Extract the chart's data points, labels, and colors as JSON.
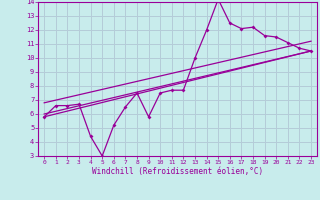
{
  "xlabel": "Windchill (Refroidissement éolien,°C)",
  "bg_color": "#c8ecec",
  "grid_color": "#b4ccd8",
  "line_color": "#990099",
  "xlim": [
    -0.5,
    23.5
  ],
  "ylim": [
    3,
    14
  ],
  "xticks": [
    0,
    1,
    2,
    3,
    4,
    5,
    6,
    7,
    8,
    9,
    10,
    11,
    12,
    13,
    14,
    15,
    16,
    17,
    18,
    19,
    20,
    21,
    22,
    23
  ],
  "yticks": [
    3,
    4,
    5,
    6,
    7,
    8,
    9,
    10,
    11,
    12,
    13,
    14
  ],
  "jagged_x": [
    0,
    1,
    2,
    3,
    4,
    5,
    6,
    7,
    8,
    9,
    10,
    11,
    12,
    13,
    14,
    15,
    16,
    17,
    18,
    19,
    20,
    21,
    22,
    23
  ],
  "jagged_y": [
    5.8,
    6.6,
    6.6,
    6.7,
    4.4,
    3.0,
    5.2,
    6.5,
    7.5,
    5.8,
    7.5,
    7.7,
    7.7,
    10.0,
    12.0,
    14.2,
    12.5,
    12.1,
    12.2,
    11.6,
    11.5,
    11.1,
    10.7,
    10.5
  ],
  "line1_x": [
    0,
    23
  ],
  "line1_y": [
    6.0,
    10.5
  ],
  "line2_x": [
    0,
    23
  ],
  "line2_y": [
    6.8,
    11.2
  ],
  "line3_x": [
    0,
    23
  ],
  "line3_y": [
    5.8,
    10.5
  ]
}
